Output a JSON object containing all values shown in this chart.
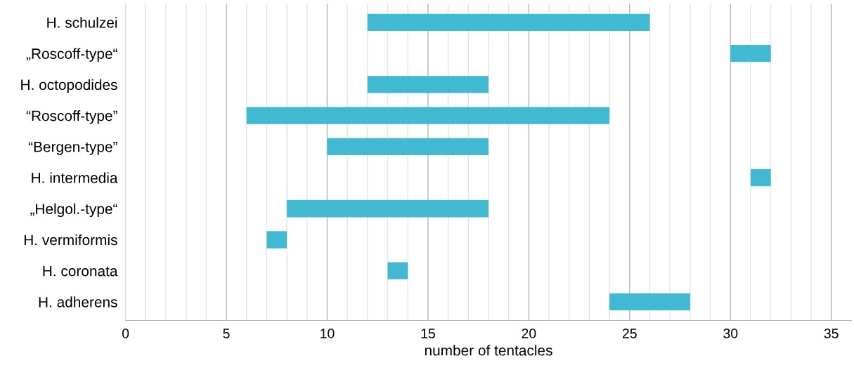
{
  "chart_data": {
    "type": "bar",
    "orientation": "horizontal",
    "xlabel": "number of tentacles",
    "categories": [
      "H. schulzei",
      "„Roscoff-type“",
      "H. octopodides",
      "“Roscoff-type”",
      "“Bergen-type”",
      "H. intermedia",
      "„Helgol.-type“",
      "H. vermiformis",
      "H. coronata",
      "H. adherens"
    ],
    "base": [
      12,
      30,
      12,
      6,
      10,
      31,
      8,
      7,
      13,
      24
    ],
    "values": [
      14,
      2,
      6,
      18,
      8,
      1,
      10,
      1,
      1,
      4
    ],
    "color": "#41b9d3",
    "xlim": [
      0,
      36
    ],
    "xticks": [
      0,
      {
        "value": 1,
        "label": null
      },
      {
        "value": 2,
        "label": null
      },
      {
        "value": 3,
        "label": null
      },
      {
        "value": 4,
        "label": null
      },
      5,
      {
        "value": 6,
        "label": null
      },
      {
        "value": 7,
        "label": null
      },
      {
        "value": 8,
        "label": null
      },
      {
        "value": 9,
        "label": null
      },
      10,
      {
        "value": 11,
        "label": null
      },
      {
        "value": 12,
        "label": null
      },
      {
        "value": 13,
        "label": null
      },
      {
        "value": 14,
        "label": null
      },
      15,
      {
        "value": 16,
        "label": null
      },
      {
        "value": 17,
        "label": null
      },
      {
        "value": 18,
        "label": null
      },
      {
        "value": 19,
        "label": null
      },
      20,
      {
        "value": 21,
        "label": null
      },
      {
        "value": 22,
        "label": null
      },
      {
        "value": 23,
        "label": null
      },
      {
        "value": 24,
        "label": null
      },
      25,
      {
        "value": 26,
        "label": null
      },
      {
        "value": 27,
        "label": null
      },
      {
        "value": 28,
        "label": null
      },
      {
        "value": 29,
        "label": null
      },
      30,
      {
        "value": 31,
        "label": null
      },
      {
        "value": 32,
        "label": null
      },
      {
        "value": 33,
        "label": null
      },
      {
        "value": 34,
        "label": null
      },
      35
    ],
    "grid": "x",
    "legend": false
  }
}
